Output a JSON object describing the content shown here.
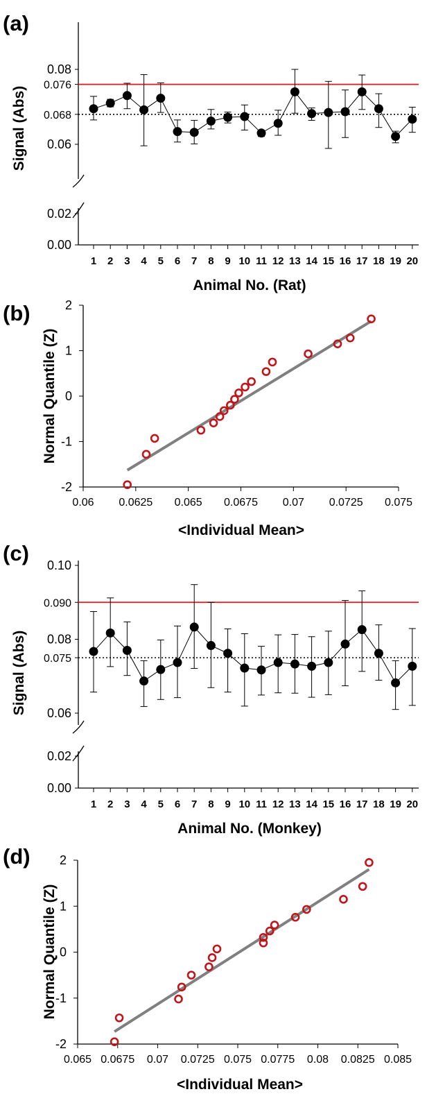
{
  "chart_data": [
    {
      "id": "a",
      "type": "line",
      "panel_label": "(a)",
      "xlabel": "Animal No. (Rat)",
      "ylabel": "Signal (Abs)",
      "categories": [
        "1",
        "2",
        "3",
        "4",
        "5",
        "6",
        "7",
        "8",
        "9",
        "10",
        "11",
        "12",
        "13",
        "14",
        "15",
        "16",
        "17",
        "18",
        "19",
        "20"
      ],
      "values": [
        0.0695,
        0.071,
        0.073,
        0.0692,
        0.0723,
        0.0634,
        0.0632,
        0.0662,
        0.0672,
        0.0674,
        0.063,
        0.0656,
        0.074,
        0.0682,
        0.0685,
        0.0687,
        0.074,
        0.0695,
        0.0621,
        0.0667
      ],
      "error_upper": [
        0.0728,
        0.072,
        0.0763,
        0.0786,
        0.0764,
        0.0665,
        0.0664,
        0.0693,
        0.0686,
        0.0705,
        0.0638,
        0.0691,
        0.08,
        0.0697,
        0.0768,
        0.0745,
        0.0785,
        0.0735,
        0.0635,
        0.0699
      ],
      "error_lower": [
        0.0665,
        0.07,
        0.0695,
        0.0596,
        0.0685,
        0.0606,
        0.0601,
        0.0641,
        0.0657,
        0.0638,
        0.0621,
        0.0624,
        0.0683,
        0.0664,
        0.0589,
        0.0618,
        0.0693,
        0.0645,
        0.0604,
        0.0632
      ],
      "reference_lines": [
        {
          "value": 0.076,
          "label": "0.076",
          "color": "#e8161b",
          "style": "solid"
        },
        {
          "value": 0.068,
          "label": "0.068",
          "color": "#000000",
          "style": "dotted"
        }
      ],
      "upper_ticks": [
        0.06,
        0.068,
        0.076,
        0.08
      ],
      "upper_tick_labels": [
        "0.06",
        "0.068",
        "0.076",
        "0.08"
      ],
      "lower_ticks": [
        0.0,
        0.02
      ],
      "lower_tick_labels": [
        "0.00",
        "0.02"
      ],
      "axis_break": true
    },
    {
      "id": "b",
      "type": "scatter",
      "panel_label": "(b)",
      "xlabel": "<Individual Mean>",
      "ylabel": "Normal Quantile (Z)",
      "x": [
        0.0621,
        0.063,
        0.0634,
        0.0656,
        0.0662,
        0.0665,
        0.0667,
        0.067,
        0.0672,
        0.0674,
        0.0677,
        0.068,
        0.0687,
        0.069,
        0.0707,
        0.0721,
        0.0727,
        0.0737
      ],
      "y": [
        -1.95,
        -1.28,
        -0.93,
        -0.75,
        -0.59,
        -0.45,
        -0.32,
        -0.2,
        -0.07,
        0.07,
        0.2,
        0.32,
        0.54,
        0.75,
        0.93,
        1.15,
        1.28,
        1.7
      ],
      "fit_line": {
        "x": [
          0.0621,
          0.0737
        ],
        "y": [
          -1.63,
          1.65
        ],
        "color": "#808080"
      },
      "marker_color": "#c0151b",
      "xlim": [
        0.06,
        0.075
      ],
      "ylim": [
        -2,
        2
      ],
      "xticks": [
        "0.06",
        "0.0625",
        "0.065",
        "0.0675",
        "0.07",
        "0.0725",
        "0.075"
      ],
      "yticks": [
        "-2",
        "-1",
        "0",
        "1",
        "2"
      ]
    },
    {
      "id": "c",
      "type": "line",
      "panel_label": "(c)",
      "xlabel": "Animal No. (Monkey)",
      "ylabel": "Signal (Abs)",
      "categories": [
        "1",
        "2",
        "3",
        "4",
        "5",
        "6",
        "7",
        "8",
        "9",
        "10",
        "11",
        "12",
        "13",
        "14",
        "15",
        "16",
        "17",
        "18",
        "19",
        "20"
      ],
      "values": [
        0.0767,
        0.0817,
        0.077,
        0.0687,
        0.0718,
        0.0737,
        0.0833,
        0.0783,
        0.0762,
        0.0722,
        0.0717,
        0.0737,
        0.0733,
        0.0727,
        0.0737,
        0.0787,
        0.0826,
        0.0762,
        0.0682,
        0.0727
      ],
      "error_upper": [
        0.0875,
        0.0912,
        0.0847,
        0.0742,
        0.0798,
        0.0836,
        0.0948,
        0.09,
        0.0828,
        0.0815,
        0.0781,
        0.0812,
        0.0813,
        0.0807,
        0.0822,
        0.0905,
        0.0931,
        0.0839,
        0.0742,
        0.0829
      ],
      "error_lower": [
        0.0657,
        0.0726,
        0.0702,
        0.0618,
        0.0637,
        0.0642,
        0.0721,
        0.0669,
        0.0657,
        0.0619,
        0.0649,
        0.0655,
        0.0654,
        0.0643,
        0.065,
        0.0674,
        0.0713,
        0.0689,
        0.061,
        0.0621
      ],
      "reference_lines": [
        {
          "value": 0.09,
          "label": "0.090",
          "color": "#e8161b",
          "style": "solid"
        },
        {
          "value": 0.075,
          "label": "0.075",
          "color": "#000000",
          "style": "dotted"
        }
      ],
      "upper_ticks": [
        0.06,
        0.075,
        0.08,
        0.09,
        0.1
      ],
      "upper_tick_labels": [
        "0.06",
        "0.075",
        "0.08",
        "0.090",
        "0.10"
      ],
      "lower_ticks": [
        0.0,
        0.02
      ],
      "lower_tick_labels": [
        "0.00",
        "0.02"
      ],
      "axis_break": true
    },
    {
      "id": "d",
      "type": "scatter",
      "panel_label": "(d)",
      "xlabel": "<Individual Mean>",
      "ylabel": "Normal Quantile (Z)",
      "x": [
        0.0673,
        0.0676,
        0.0713,
        0.0715,
        0.0721,
        0.0732,
        0.0734,
        0.0737,
        0.0766,
        0.0766,
        0.077,
        0.0773,
        0.0786,
        0.0793,
        0.0816,
        0.0828,
        0.0832
      ],
      "y": [
        -1.95,
        -1.43,
        -1.02,
        -0.76,
        -0.5,
        -0.32,
        -0.12,
        0.07,
        0.2,
        0.32,
        0.46,
        0.59,
        0.76,
        0.93,
        1.15,
        1.43,
        1.95
      ],
      "fit_line": {
        "x": [
          0.0673,
          0.0832
        ],
        "y": [
          -1.73,
          1.8
        ],
        "color": "#808080"
      },
      "marker_color": "#c0151b",
      "xlim": [
        0.065,
        0.085
      ],
      "ylim": [
        -2,
        2
      ],
      "xticks": [
        "0.065",
        "0.0675",
        "0.07",
        "0.0725",
        "0.075",
        "0.0775",
        "0.08",
        "0.0825",
        "0.085"
      ],
      "yticks": [
        "-2",
        "-1",
        "0",
        "1",
        "2"
      ]
    }
  ]
}
